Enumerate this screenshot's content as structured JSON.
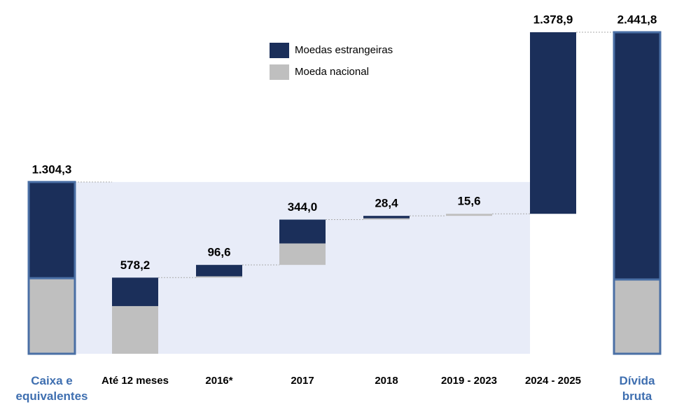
{
  "chart_data": {
    "type": "waterfall",
    "categories": [
      "Caixa e\nequivalentes",
      "Até 12 meses",
      "2016*",
      "2017",
      "2018",
      "2019 - 2023",
      "2024 - 2025",
      "Dívida\nbruta"
    ],
    "series": [
      {
        "name": "Moedas estrangeiras",
        "color": "#1b2f5a",
        "values": [
          730.3,
          216.2,
          86.6,
          181,
          18.4,
          0,
          1378.9,
          1877.8
        ]
      },
      {
        "name": "Moeda nacional",
        "color": "#bfbfbf",
        "values": [
          574,
          362,
          10,
          163,
          10,
          15.6,
          0,
          564
        ]
      }
    ],
    "totals": [
      1304.3,
      578.2,
      96.6,
      344.0,
      28.4,
      15.6,
      1378.9,
      2441.8
    ],
    "total_labels": [
      "1.304,3",
      "578,2",
      "96,6",
      "344,0",
      "28,4",
      "15,6",
      "1.378,9",
      "2.441,8"
    ]
  }
}
